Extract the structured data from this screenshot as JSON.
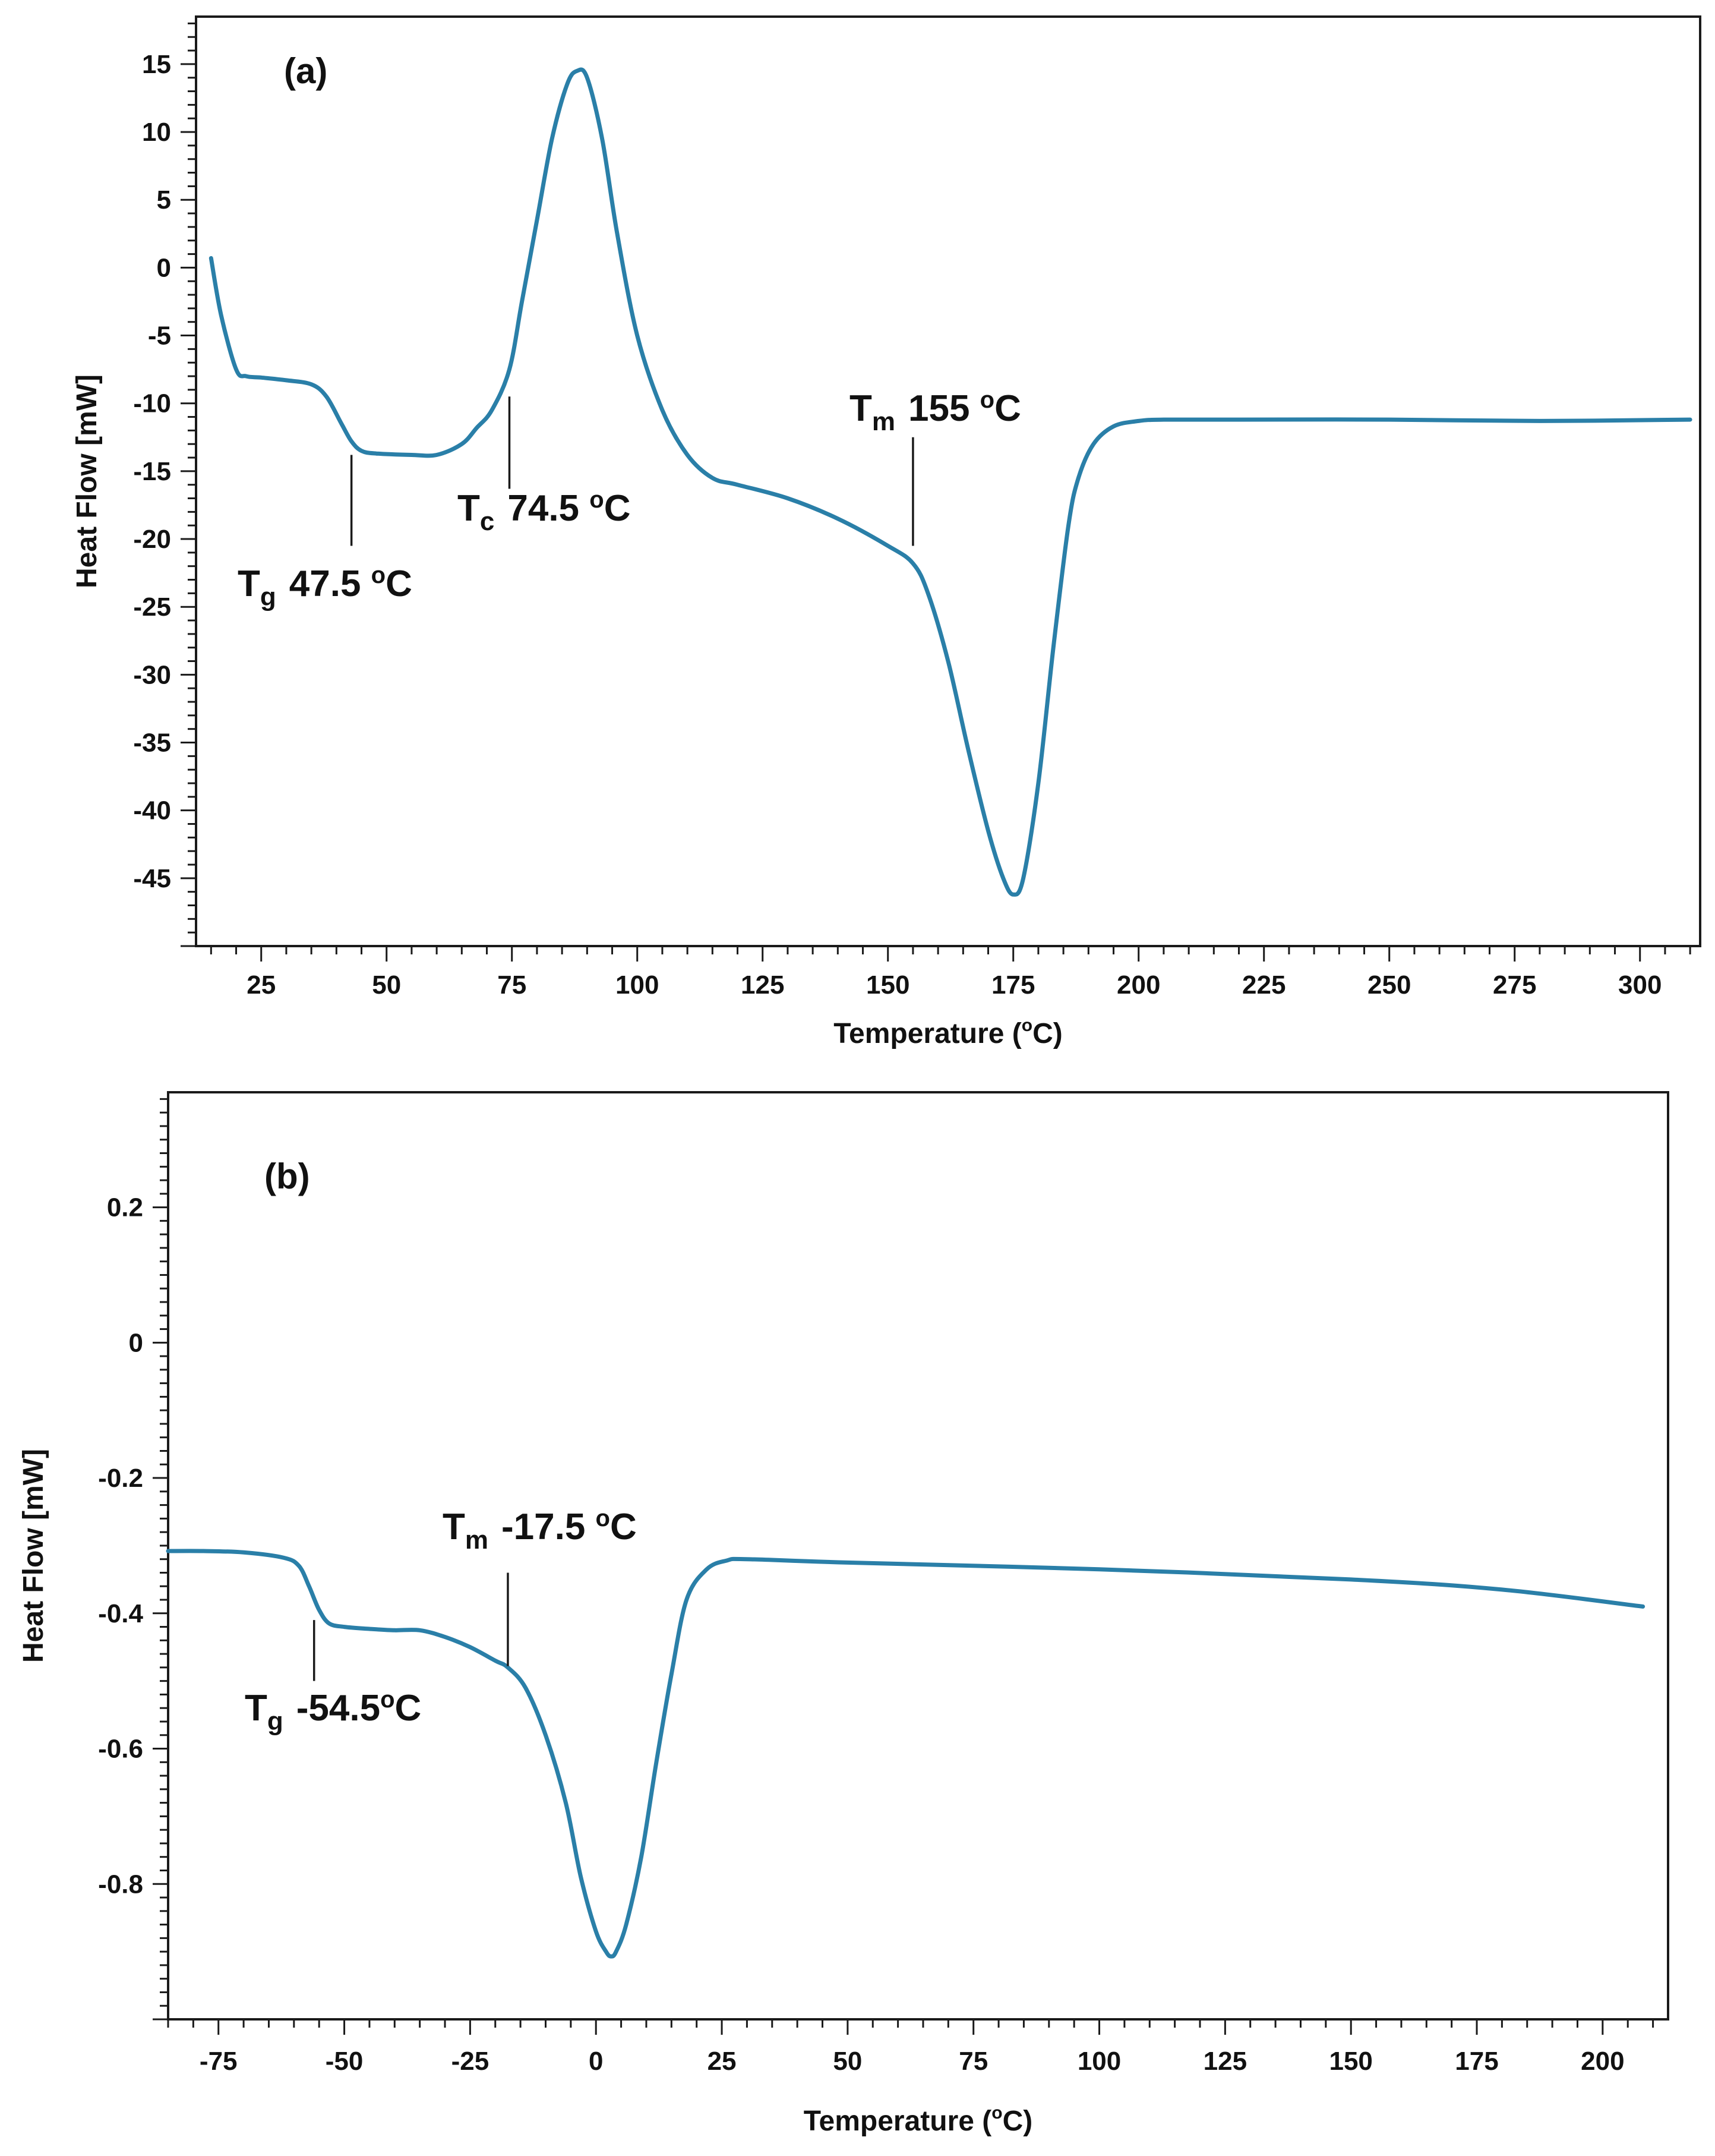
{
  "colors": {
    "curve": "#2a7fa8",
    "axis": "#1a1a1a"
  },
  "chart_data": [
    {
      "type": "line",
      "panel_label": "(a)",
      "xlabel": "Temperature (oC)",
      "xlabel_parts": {
        "pre": "Temperature (",
        "sup": "o",
        "post": "C)"
      },
      "ylabel": "Heat Flow [mW]",
      "xlim": [
        12,
        312
      ],
      "ylim": [
        -50,
        18.5
      ],
      "xticks": [
        25,
        50,
        75,
        100,
        125,
        150,
        175,
        200,
        225,
        250,
        275,
        300
      ],
      "yticks": [
        15,
        10,
        5,
        0,
        -5,
        -10,
        -15,
        -20,
        -25,
        -30,
        -35,
        -40,
        -45
      ],
      "series": [
        {
          "name": "DSC curve (a)",
          "x": [
            15,
            17,
            20,
            22,
            25,
            30,
            35,
            38,
            41,
            43,
            45,
            48,
            55,
            60,
            65,
            68,
            71,
            74.5,
            77,
            80,
            83,
            86,
            88,
            90,
            93,
            96,
            100,
            105,
            110,
            115,
            120,
            130,
            140,
            150,
            155,
            158,
            162,
            166,
            170,
            173,
            175,
            177,
            180,
            183,
            186,
            188,
            191,
            195,
            200,
            205,
            220,
            250,
            280,
            310
          ],
          "y": [
            0.7,
            -3.5,
            -7.5,
            -8.0,
            -8.1,
            -8.3,
            -8.6,
            -9.5,
            -11.5,
            -12.8,
            -13.5,
            -13.7,
            -13.8,
            -13.8,
            -13.0,
            -11.8,
            -10.5,
            -7.5,
            -2.5,
            3.5,
            9.5,
            13.5,
            14.5,
            14.0,
            9.5,
            2.5,
            -5.0,
            -10.5,
            -13.8,
            -15.5,
            -16.0,
            -17.0,
            -18.5,
            -20.5,
            -21.8,
            -24.0,
            -29.0,
            -35.5,
            -41.5,
            -45.0,
            -46.2,
            -45.0,
            -38.0,
            -28.0,
            -19.0,
            -15.5,
            -13.0,
            -11.7,
            -11.3,
            -11.2,
            -11.2,
            -11.2,
            -11.3,
            -11.2
          ]
        }
      ],
      "annotations": [
        {
          "symbol": "T",
          "sub": "g",
          "value": "47.5 oC",
          "text_pre": "47.5 ",
          "sup": "o",
          "text_post": "C",
          "marker_x": 43,
          "marker_y": [
            -13.8,
            -20.5
          ]
        },
        {
          "symbol": "T",
          "sub": "c",
          "value": "74.5 oC",
          "text_pre": "74.5 ",
          "sup": "o",
          "text_post": "C",
          "marker_x": 74.5,
          "marker_y": [
            -9.5,
            -16.3
          ]
        },
        {
          "symbol": "T",
          "sub": "m",
          "value": "155 oC",
          "text_pre": "155 ",
          "sup": "o",
          "text_post": "C",
          "marker_x": 155,
          "marker_y": [
            -12.5,
            -20.5
          ]
        }
      ]
    },
    {
      "type": "line",
      "panel_label": "(b)",
      "xlabel": "Temperature (oC)",
      "xlabel_parts": {
        "pre": "Temperature (",
        "sup": "o",
        "post": "C)"
      },
      "ylabel": "Heat Flow [mW]",
      "xlim": [
        -85,
        213
      ],
      "ylim": [
        -1.0,
        0.37
      ],
      "xticks": [
        -75,
        -50,
        -25,
        0,
        25,
        50,
        75,
        100,
        125,
        150,
        175,
        200
      ],
      "xtick_labels": [
        "-75",
        "-50",
        "-25",
        "0",
        "25",
        "50",
        "75",
        "100",
        "125",
        "150",
        "175",
        "200"
      ],
      "yticks": [
        0.2,
        0,
        -0.2,
        -0.4,
        -0.6,
        -0.8
      ],
      "ytick_labels": [
        "0.2",
        "0",
        "-0.2",
        "-0.4",
        "-0.6",
        "-0.8"
      ],
      "series": [
        {
          "name": "DSC curve (b)",
          "x": [
            -85,
            -78,
            -70,
            -62,
            -59,
            -57,
            -55,
            -53,
            -50,
            -45,
            -40,
            -35,
            -30,
            -25,
            -20,
            -17.5,
            -14,
            -10,
            -6,
            -3,
            0,
            2,
            3,
            4,
            6,
            9,
            12,
            15,
            18,
            22,
            26,
            30,
            50,
            100,
            150,
            180,
            208
          ],
          "y": [
            -0.308,
            -0.308,
            -0.31,
            -0.318,
            -0.33,
            -0.36,
            -0.395,
            -0.415,
            -0.42,
            -0.423,
            -0.425,
            -0.425,
            -0.435,
            -0.45,
            -0.47,
            -0.48,
            -0.51,
            -0.58,
            -0.68,
            -0.79,
            -0.87,
            -0.9,
            -0.907,
            -0.9,
            -0.86,
            -0.76,
            -0.62,
            -0.49,
            -0.38,
            -0.335,
            -0.322,
            -0.32,
            -0.325,
            -0.335,
            -0.35,
            -0.365,
            -0.39
          ]
        }
      ],
      "annotations": [
        {
          "symbol": "T",
          "sub": "g",
          "value": "-54.5oC",
          "text_pre": "-54.5",
          "sup": "o",
          "text_post": "C",
          "marker_x": -56,
          "marker_y": [
            -0.41,
            -0.5
          ]
        },
        {
          "symbol": "T",
          "sub": "m",
          "value": "-17.5 oC",
          "text_pre": "-17.5 ",
          "sup": "o",
          "text_post": "C",
          "marker_x": -17.5,
          "marker_y": [
            -0.34,
            -0.478
          ]
        }
      ]
    }
  ]
}
